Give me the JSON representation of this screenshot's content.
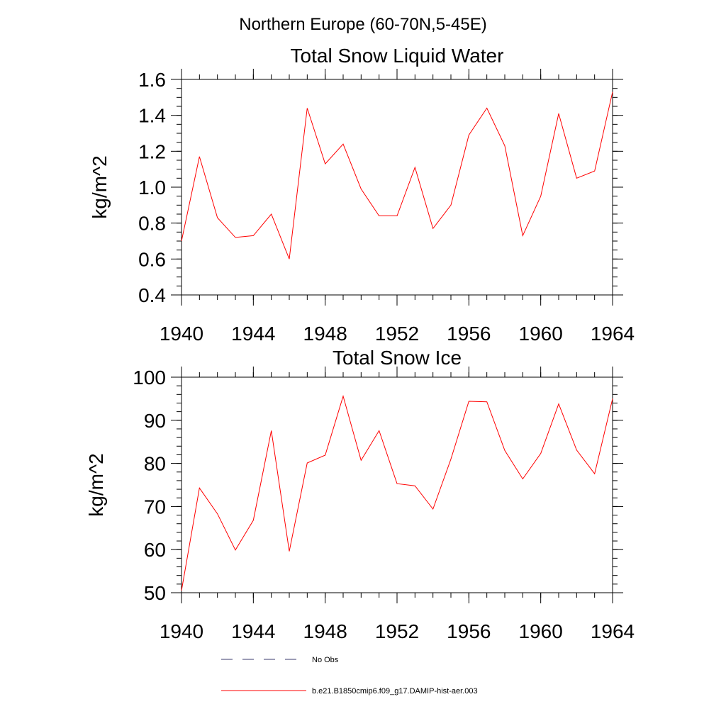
{
  "figure": {
    "suptitle": "Northern Europe (60-70N,5-45E)"
  },
  "legend": {
    "items": [
      {
        "label": "No Obs",
        "color": "#3a3a6e",
        "dash": true
      },
      {
        "label": "b.e21.B1850cmip6.f09_g17.DAMIP-hist-aer.003",
        "color": "#ff0000",
        "dash": false
      }
    ]
  },
  "chart_data": [
    {
      "type": "line",
      "title": "Total Snow Liquid Water",
      "xlabel": "",
      "ylabel": "kg/m^2",
      "xlim": [
        1940,
        1964
      ],
      "ylim": [
        0.4,
        1.6
      ],
      "xticks": [
        "1940",
        "1944",
        "1948",
        "1952",
        "1956",
        "1960",
        "1964"
      ],
      "yticks": [
        "0.4",
        "0.6",
        "0.8",
        "1.0",
        "1.2",
        "1.4",
        "1.6"
      ],
      "grid": false,
      "series": [
        {
          "color": "#ff0000",
          "x": [
            1940,
            1941,
            1942,
            1943,
            1944,
            1945,
            1946,
            1947,
            1948,
            1949,
            1950,
            1951,
            1952,
            1953,
            1954,
            1955,
            1956,
            1957,
            1958,
            1959,
            1960,
            1961,
            1962,
            1963,
            1964
          ],
          "y": [
            0.7,
            1.17,
            0.83,
            0.72,
            0.73,
            0.85,
            0.6,
            1.44,
            1.13,
            1.24,
            0.99,
            0.84,
            0.84,
            1.11,
            0.77,
            0.9,
            1.29,
            1.44,
            1.23,
            0.73,
            0.95,
            1.41,
            1.05,
            1.09,
            1.53
          ]
        }
      ]
    },
    {
      "type": "line",
      "title": "Total Snow Ice",
      "xlabel": "",
      "ylabel": "kg/m^2",
      "xlim": [
        1940,
        1964
      ],
      "ylim": [
        50,
        100
      ],
      "xticks": [
        "1940",
        "1944",
        "1948",
        "1952",
        "1956",
        "1960",
        "1964"
      ],
      "yticks": [
        "50",
        "60",
        "70",
        "80",
        "90",
        "100"
      ],
      "grid": false,
      "series": [
        {
          "color": "#ff0000",
          "x": [
            1940,
            1941,
            1942,
            1943,
            1944,
            1945,
            1946,
            1947,
            1948,
            1949,
            1950,
            1951,
            1952,
            1953,
            1954,
            1955,
            1956,
            1957,
            1958,
            1959,
            1960,
            1961,
            1962,
            1963,
            1964
          ],
          "y": [
            50.5,
            74.3,
            68.3,
            59.9,
            66.8,
            87.6,
            59.6,
            80.1,
            81.9,
            95.6,
            80.7,
            87.6,
            75.3,
            74.8,
            69.4,
            81.0,
            94.4,
            94.3,
            83.0,
            76.4,
            82.3,
            93.8,
            83.1,
            77.6,
            95.0
          ]
        }
      ]
    }
  ]
}
